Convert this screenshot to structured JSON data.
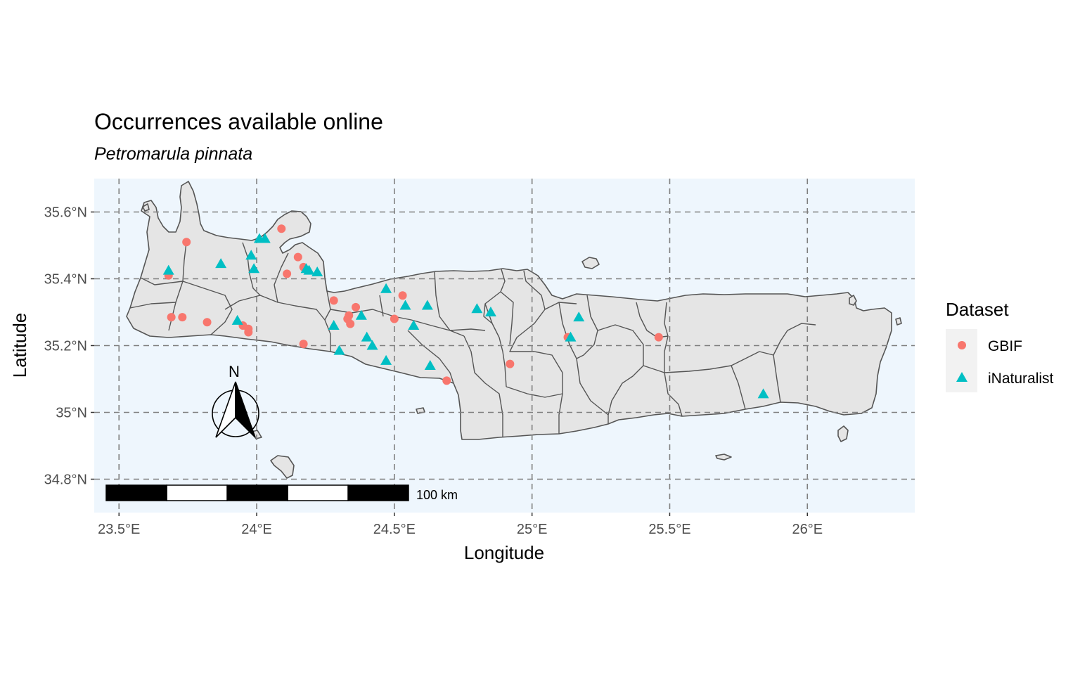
{
  "chart_data": {
    "type": "scatter",
    "title": "Occurrences available online",
    "subtitle": "Petromarula pinnata",
    "xlabel": "Longitude",
    "ylabel": "Latitude",
    "xlim": [
      23.41,
      26.39
    ],
    "ylim": [
      34.7,
      35.7
    ],
    "x_ticks": [
      23.5,
      24.0,
      24.5,
      25.0,
      25.5,
      26.0
    ],
    "x_tick_labels": [
      "23.5°E",
      "24°E",
      "24.5°E",
      "25°E",
      "25.5°E",
      "26°E"
    ],
    "y_ticks": [
      35.6,
      35.4,
      35.2,
      35.0,
      34.8
    ],
    "y_tick_labels": [
      "35.6°N",
      "35.4°N",
      "35.2°N",
      "35°N",
      "34.8°N"
    ],
    "grid": true,
    "panel_background": "#eef6fd",
    "legend": {
      "title": "Dataset",
      "placement": "right"
    },
    "series": [
      {
        "name": "GBIF",
        "marker": "circle",
        "color": "#f8766d",
        "points": [
          [
            23.68,
            35.41
          ],
          [
            23.745,
            35.51
          ],
          [
            23.69,
            35.285
          ],
          [
            23.73,
            35.285
          ],
          [
            23.82,
            35.27
          ],
          [
            23.95,
            35.26
          ],
          [
            23.97,
            35.25
          ],
          [
            23.97,
            35.24
          ],
          [
            24.09,
            35.55
          ],
          [
            24.15,
            35.465
          ],
          [
            24.17,
            35.435
          ],
          [
            24.11,
            35.415
          ],
          [
            24.17,
            35.205
          ],
          [
            24.28,
            35.335
          ],
          [
            24.33,
            35.28
          ],
          [
            24.335,
            35.29
          ],
          [
            24.34,
            35.265
          ],
          [
            24.36,
            35.315
          ],
          [
            24.5,
            35.28
          ],
          [
            24.53,
            35.35
          ],
          [
            24.69,
            35.095
          ],
          [
            24.92,
            35.145
          ],
          [
            25.13,
            35.225
          ],
          [
            25.46,
            35.225
          ]
        ]
      },
      {
        "name": "iNaturalist",
        "marker": "triangle",
        "color": "#00bfc4",
        "points": [
          [
            23.68,
            35.425
          ],
          [
            23.87,
            35.445
          ],
          [
            23.93,
            35.275
          ],
          [
            23.98,
            35.47
          ],
          [
            23.99,
            35.43
          ],
          [
            24.01,
            35.52
          ],
          [
            24.03,
            35.52
          ],
          [
            24.18,
            35.43
          ],
          [
            24.19,
            35.425
          ],
          [
            24.22,
            35.42
          ],
          [
            24.28,
            35.26
          ],
          [
            24.3,
            35.185
          ],
          [
            24.38,
            35.29
          ],
          [
            24.4,
            35.225
          ],
          [
            24.42,
            35.2
          ],
          [
            24.47,
            35.155
          ],
          [
            24.47,
            35.37
          ],
          [
            24.54,
            35.32
          ],
          [
            24.57,
            35.26
          ],
          [
            24.62,
            35.32
          ],
          [
            24.63,
            35.14
          ],
          [
            24.8,
            35.31
          ],
          [
            24.85,
            35.3
          ],
          [
            25.14,
            35.225
          ],
          [
            25.17,
            35.285
          ],
          [
            25.84,
            35.055
          ]
        ]
      }
    ],
    "annotations": {
      "north_arrow_label": "N",
      "scale_bar_label": "100 km",
      "scale_bar_segments": 5
    },
    "regions": "Crete island outline with municipal boundaries; small islets (Gavdos, Gramvousa, Dia, Chrysi, Koufonisi)"
  }
}
